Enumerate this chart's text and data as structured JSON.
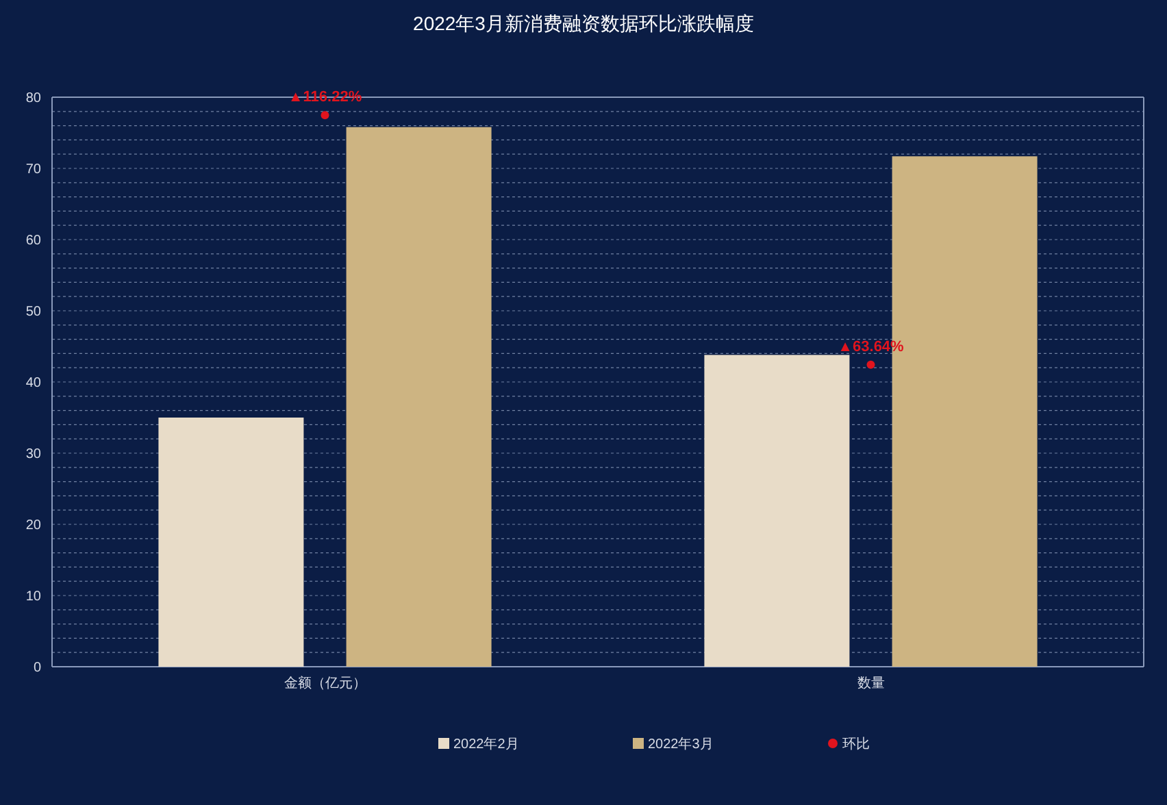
{
  "chart_data": {
    "type": "bar",
    "title": "2022年3月新消费融资数据环比涨跌幅度",
    "categories": [
      "金额（亿元）",
      "数量"
    ],
    "series": [
      {
        "name": "2022年2月",
        "color": "#e8dcc8",
        "values": [
          35.0,
          43.8
        ]
      },
      {
        "name": "2022年3月",
        "color": "#cdb482",
        "values": [
          75.8,
          71.7
        ]
      },
      {
        "name": "环比",
        "type": "scatter",
        "axis": "y2",
        "color": "#e0141e",
        "values": [
          116.22,
          63.64
        ],
        "value_labels": [
          "▲116.22%",
          "▲63.64%"
        ]
      }
    ],
    "ylim": [
      0,
      80
    ],
    "yticks": [
      0,
      10,
      20,
      30,
      40,
      50,
      60,
      70,
      80
    ],
    "y2lim": [
      0,
      120
    ],
    "grid": "y",
    "legend": "bottom",
    "marker": "circle"
  }
}
